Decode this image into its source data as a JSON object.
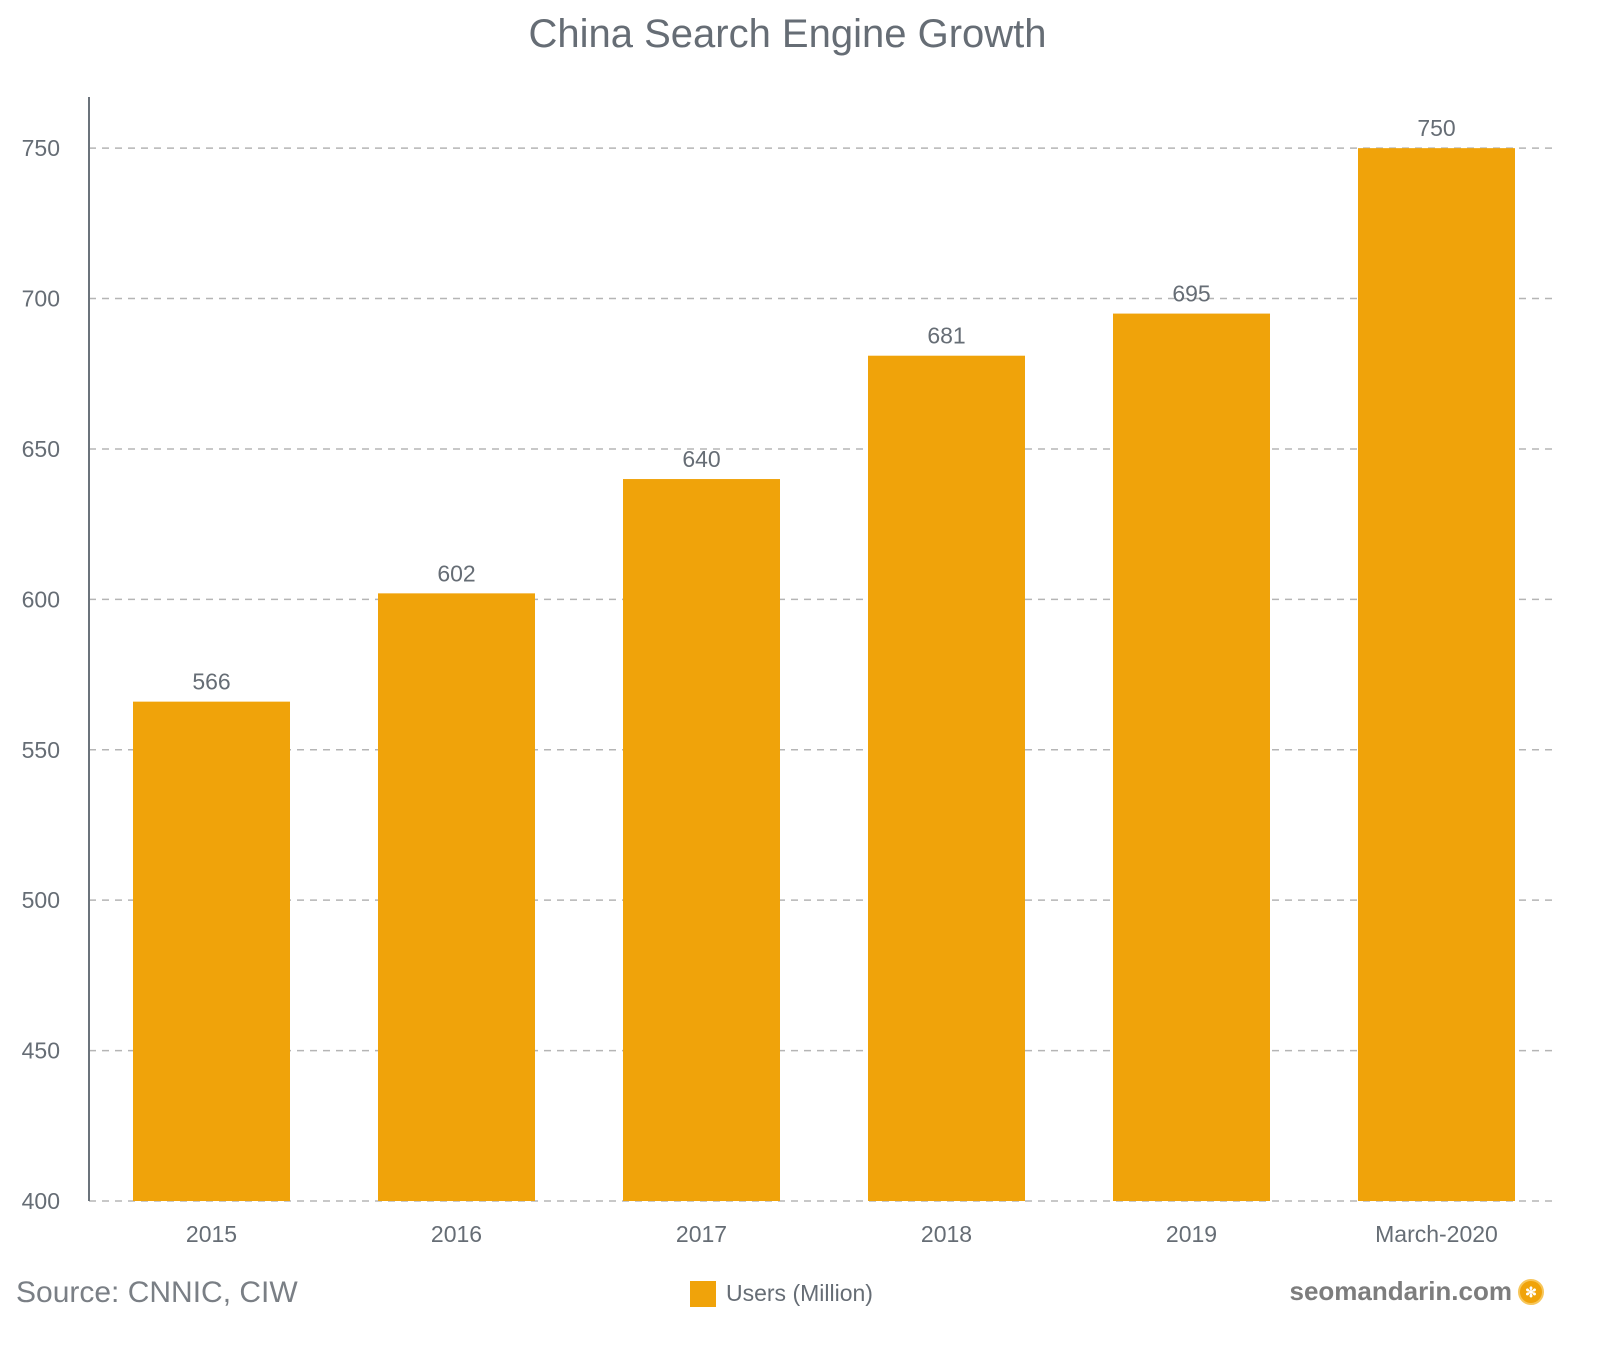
{
  "chart_data": {
    "type": "bar",
    "title": "China Search Engine Growth",
    "categories": [
      "2015",
      "2016",
      "2017",
      "2018",
      "2019",
      "March-2020"
    ],
    "series": [
      {
        "name": "Users (Million)",
        "values": [
          566,
          602,
          640,
          681,
          695,
          750
        ],
        "color": "#F0A30A"
      }
    ],
    "yticks": [
      400,
      450,
      500,
      550,
      600,
      650,
      700,
      750
    ],
    "ylim": [
      400,
      767
    ],
    "grid": true,
    "grid_style": "dashed",
    "data_labels": true,
    "legend_placement": "bottom-center"
  },
  "footer": {
    "source": "Source:  CNNIC, CIW",
    "brand": "seomandarin.com",
    "brand_icon": "pinwheel-logo-icon"
  }
}
